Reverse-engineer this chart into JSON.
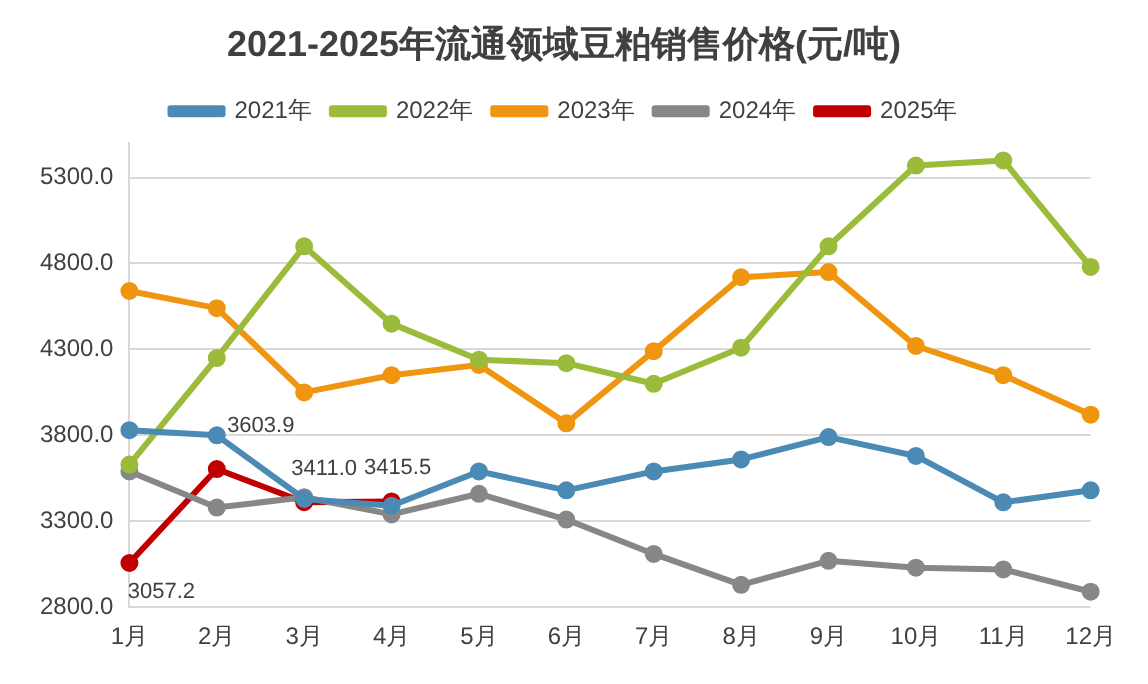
{
  "chart_data": {
    "type": "line",
    "title": "2021-2025年流通领域豆粕销售价格(元/吨)",
    "categories": [
      "1月",
      "2月",
      "3月",
      "4月",
      "5月",
      "6月",
      "7月",
      "8月",
      "9月",
      "10月",
      "11月",
      "12月"
    ],
    "series": [
      {
        "name": "2021年",
        "color": "#4a8ab4",
        "values": [
          3830,
          3800,
          3430,
          3390,
          3590,
          3480,
          3590,
          3660,
          3790,
          3680,
          3410,
          3480
        ]
      },
      {
        "name": "2022年",
        "color": "#9bbb3a",
        "values": [
          3630,
          4250,
          4900,
          4450,
          4240,
          4220,
          4100,
          4310,
          4900,
          5370,
          5400,
          4780
        ]
      },
      {
        "name": "2023年",
        "color": "#f0950f",
        "values": [
          4640,
          4540,
          4050,
          4150,
          4210,
          3870,
          4290,
          4720,
          4750,
          4320,
          4150,
          3920
        ]
      },
      {
        "name": "2024年",
        "color": "#878787",
        "values": [
          3590,
          3380,
          3440,
          3340,
          3460,
          3310,
          3110,
          2930,
          3070,
          3030,
          3020,
          2890
        ]
      },
      {
        "name": "2025年",
        "color": "#c00000",
        "values": [
          3057.2,
          3603.9,
          3411.0,
          3415.5,
          null,
          null,
          null,
          null,
          null,
          null,
          null,
          null
        ],
        "value_labels": [
          "3057.2",
          "3603.9",
          "3411.0",
          "3415.5",
          null,
          null,
          null,
          null,
          null,
          null,
          null,
          null
        ]
      }
    ],
    "ylim": [
      2800,
      5500
    ],
    "yticks": [
      {
        "value": 2800,
        "label": "2800.0"
      },
      {
        "value": 3300,
        "label": "3300.0"
      },
      {
        "value": 3800,
        "label": "3800.0"
      },
      {
        "value": 4300,
        "label": "4300.0"
      },
      {
        "value": 4800,
        "label": "4800.0"
      },
      {
        "value": 5300,
        "label": "5300.0"
      }
    ],
    "grid": "y",
    "legend": "top",
    "marker": "circle",
    "line_style": "solid"
  }
}
